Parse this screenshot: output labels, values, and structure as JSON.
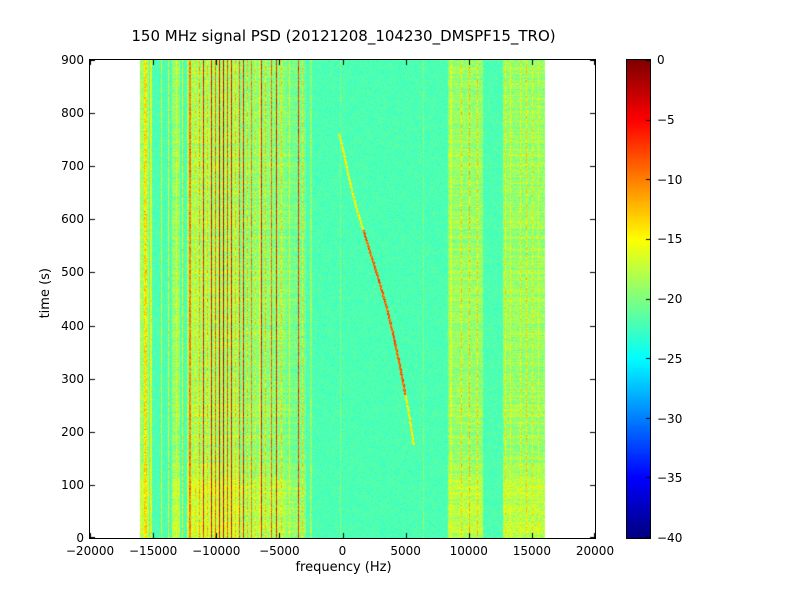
{
  "chart_data": {
    "type": "heatmap",
    "title": "150 MHz signal PSD (20121208_104230_DMSPF15_TRO)",
    "xlabel": "frequency (Hz)",
    "ylabel": "time (s)",
    "xlim": [
      -20000,
      20000
    ],
    "ylim": [
      0,
      900
    ],
    "grid": "off",
    "legend": "none",
    "xticks": [
      {
        "v": -20000,
        "label": "−20000"
      },
      {
        "v": -15000,
        "label": "−15000"
      },
      {
        "v": -10000,
        "label": "−10000"
      },
      {
        "v": -5000,
        "label": "−5000"
      },
      {
        "v": 0,
        "label": "0"
      },
      {
        "v": 5000,
        "label": "5000"
      },
      {
        "v": 10000,
        "label": "10000"
      },
      {
        "v": 15000,
        "label": "15000"
      },
      {
        "v": 20000,
        "label": "20000"
      }
    ],
    "yticks": [
      {
        "v": 0,
        "label": "0"
      },
      {
        "v": 100,
        "label": "100"
      },
      {
        "v": 200,
        "label": "200"
      },
      {
        "v": 300,
        "label": "300"
      },
      {
        "v": 400,
        "label": "400"
      },
      {
        "v": 500,
        "label": "500"
      },
      {
        "v": 600,
        "label": "600"
      },
      {
        "v": 700,
        "label": "700"
      },
      {
        "v": 800,
        "label": "800"
      },
      {
        "v": 900,
        "label": "900"
      }
    ],
    "colorbar": {
      "colormap": "jet",
      "vmin": -40,
      "vmax": 0,
      "ticks": [
        {
          "v": 0,
          "label": "0"
        },
        {
          "v": -5,
          "label": "−5"
        },
        {
          "v": -10,
          "label": "−10"
        },
        {
          "v": -15,
          "label": "−15"
        },
        {
          "v": -20,
          "label": "−20"
        },
        {
          "v": -25,
          "label": "−25"
        },
        {
          "v": -30,
          "label": "−30"
        },
        {
          "v": -35,
          "label": "−35"
        },
        {
          "v": -40,
          "label": "−40"
        }
      ]
    },
    "data_extent_hz": [
      -16000,
      16000
    ],
    "background_db": -22,
    "noise_db": 1.1,
    "bands": [
      {
        "f0": -16000,
        "f1": -15350,
        "db": -18.5
      },
      {
        "f0": -13500,
        "f1": -12850,
        "db": -19
      },
      {
        "f0": -12350,
        "f1": -8300,
        "db": -18.5
      },
      {
        "f0": -8300,
        "f1": -4450,
        "db": -19.5
      },
      {
        "f0": -4450,
        "f1": -2900,
        "db": -20.5
      },
      {
        "f0": 8350,
        "f1": 11150,
        "db": -19
      },
      {
        "f0": 12700,
        "f1": 16000,
        "db": -19
      }
    ],
    "rfi_lines": [
      {
        "f": -15600,
        "db": -14,
        "w": 180
      },
      {
        "f": -15150,
        "db": -16,
        "w": 120
      },
      {
        "f": -14350,
        "db": -17,
        "w": 120
      },
      {
        "f": -13780,
        "db": -15,
        "w": 140
      },
      {
        "f": -13150,
        "db": -16,
        "w": 120
      },
      {
        "f": -12700,
        "db": -15,
        "w": 100
      },
      {
        "f": -12050,
        "db": -10,
        "w": 140
      },
      {
        "f": -11650,
        "db": -14,
        "w": 120
      },
      {
        "f": -11300,
        "db": -12,
        "w": 100
      },
      {
        "f": -11000,
        "db": -6,
        "w": 130
      },
      {
        "f": -10700,
        "db": -13,
        "w": 100
      },
      {
        "f": -10380,
        "db": -5,
        "w": 150
      },
      {
        "f": -10060,
        "db": -9,
        "w": 120
      },
      {
        "f": -9740,
        "db": -4,
        "w": 150
      },
      {
        "f": -9420,
        "db": -3.5,
        "w": 130
      },
      {
        "f": -9110,
        "db": -8,
        "w": 120
      },
      {
        "f": -8790,
        "db": -5,
        "w": 130
      },
      {
        "f": -8475,
        "db": -13,
        "w": 100
      },
      {
        "f": -8160,
        "db": -9,
        "w": 110
      },
      {
        "f": -7840,
        "db": -6,
        "w": 130
      },
      {
        "f": -7520,
        "db": -13,
        "w": 100
      },
      {
        "f": -7210,
        "db": -10,
        "w": 110
      },
      {
        "f": -6890,
        "db": -14,
        "w": 100,
        "dash": true
      },
      {
        "f": -6560,
        "db": -16,
        "w": 90
      },
      {
        "f": -6415,
        "db": -6,
        "w": 110
      },
      {
        "f": -6100,
        "db": -13,
        "w": 100
      },
      {
        "f": -5620,
        "db": -9,
        "w": 120
      },
      {
        "f": -5230,
        "db": -6,
        "w": 110
      },
      {
        "f": -4830,
        "db": -14,
        "w": 110
      },
      {
        "f": -4200,
        "db": -16,
        "w": 100
      },
      {
        "f": -3485,
        "db": -7,
        "w": 130
      },
      {
        "f": -3170,
        "db": -14,
        "w": 110
      },
      {
        "f": -2500,
        "db": -19,
        "w": 90
      },
      {
        "f": -150,
        "db": -20,
        "w": 80
      },
      {
        "f": 6400,
        "db": -20,
        "w": 80
      },
      {
        "f": 8630,
        "db": -17,
        "w": 160
      },
      {
        "f": 9430,
        "db": -14,
        "w": 140
      },
      {
        "f": 10060,
        "db": -13,
        "w": 150
      },
      {
        "f": 10690,
        "db": -14,
        "w": 140
      },
      {
        "f": 12910,
        "db": -15,
        "w": 130
      },
      {
        "f": 13300,
        "db": -16,
        "w": 110
      },
      {
        "f": 14100,
        "db": -15,
        "w": 130
      },
      {
        "f": 14575,
        "db": -14,
        "w": 140
      },
      {
        "f": 15050,
        "db": -15,
        "w": 130
      },
      {
        "f": 15525,
        "db": -16,
        "w": 120
      }
    ],
    "doppler_track": {
      "points": [
        [
          175,
          5650
        ],
        [
          230,
          5300
        ],
        [
          280,
          4900
        ],
        [
          330,
          4500
        ],
        [
          380,
          4050
        ],
        [
          430,
          3550
        ],
        [
          480,
          2950
        ],
        [
          530,
          2300
        ],
        [
          580,
          1650
        ],
        [
          630,
          1000
        ],
        [
          680,
          500
        ],
        [
          730,
          50
        ],
        [
          760,
          -250
        ]
      ],
      "peak_db": -9,
      "edge_db": -15,
      "halfwidth_hz": 90
    }
  }
}
